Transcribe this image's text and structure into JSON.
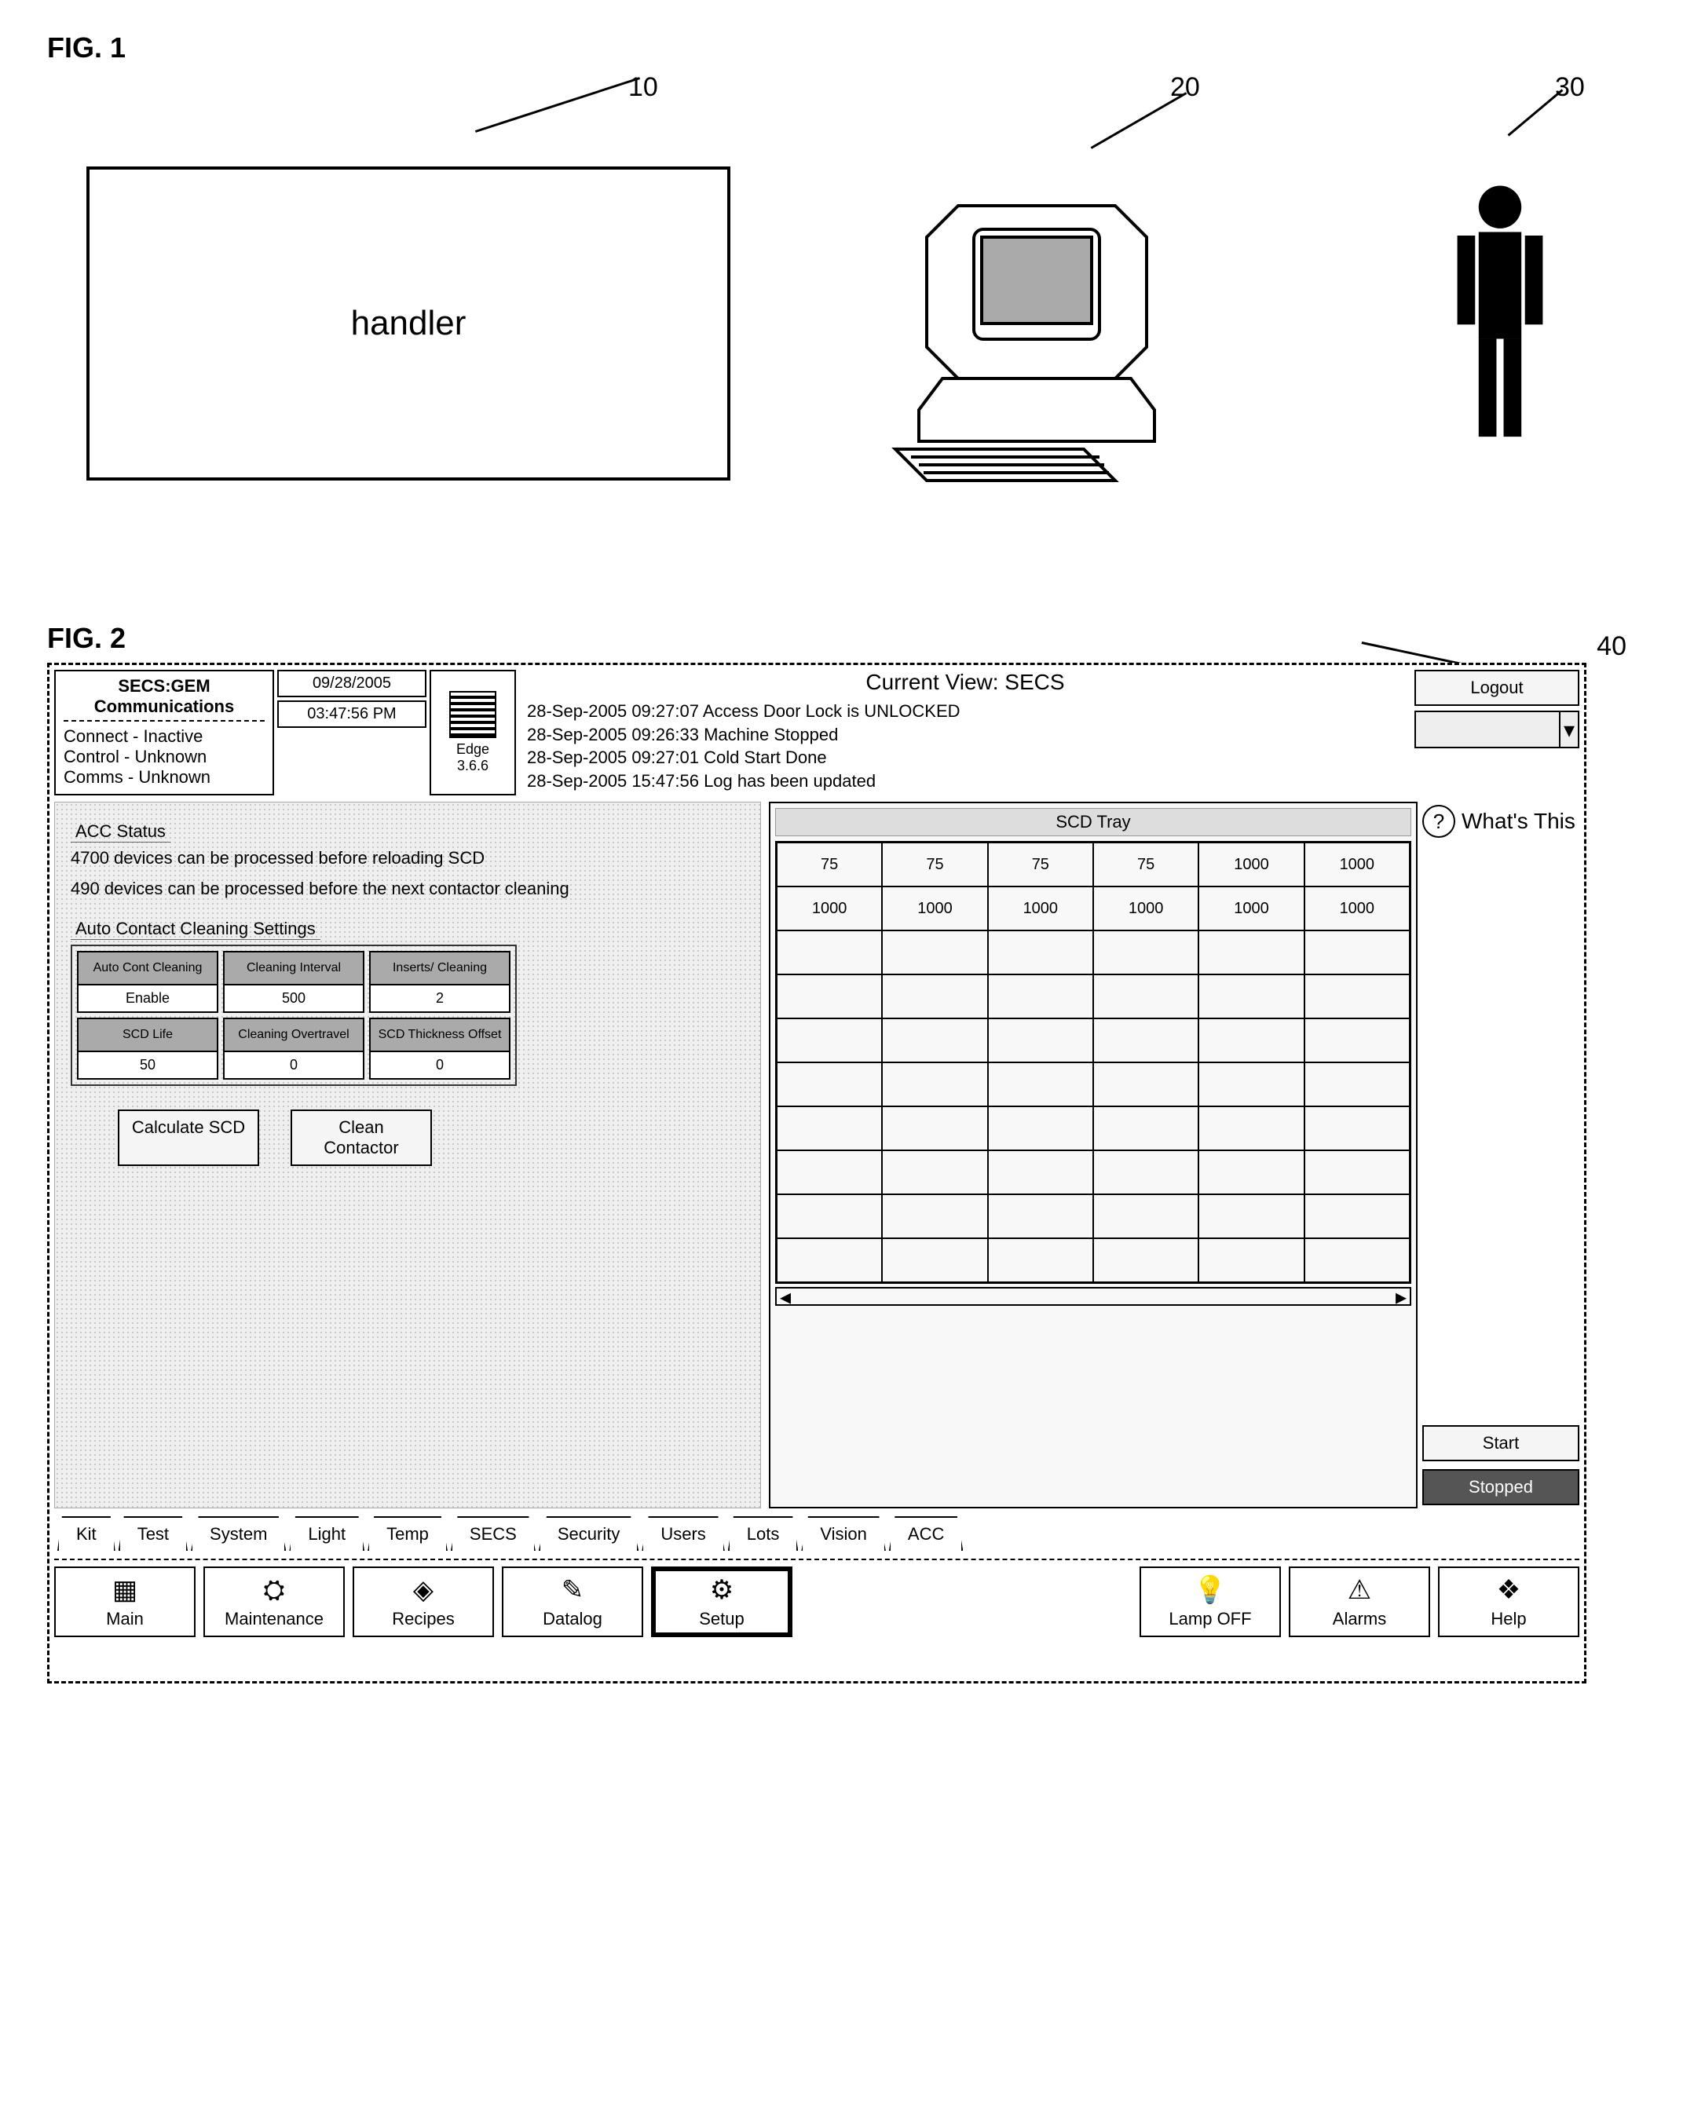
{
  "fig1": {
    "label": "FIG. 1",
    "handler_label": "handler",
    "callouts": {
      "handler": "10",
      "computer": "20",
      "person": "30"
    }
  },
  "fig2": {
    "label": "FIG. 2",
    "callout": "40",
    "header": {
      "secs_title": "SECS:GEM Communications",
      "connect": "Connect - Inactive",
      "control": "Control - Unknown",
      "comms": "Comms - Unknown",
      "date": "09/28/2005",
      "time": "03:47:56 PM",
      "edge_label": "Edge",
      "edge_ver": "3.6.6",
      "view_title": "Current View: SECS",
      "logs": [
        "28-Sep-2005 09:27:07  Access Door Lock is UNLOCKED",
        "28-Sep-2005 09:26:33  Machine Stopped",
        "28-Sep-2005 09:27:01  Cold Start Done",
        "28-Sep-2005 15:47:56  Log has been updated"
      ],
      "logout": "Logout",
      "whats_this": "What's This"
    },
    "acc_status": {
      "title": "ACC Status",
      "line1": "4700 devices can be processed before reloading SCD",
      "line2": "490 devices can be processed before the next contactor cleaning"
    },
    "settings": {
      "title": "Auto Contact Cleaning Settings",
      "cells": [
        {
          "label": "Auto Cont Cleaning",
          "value": "Enable"
        },
        {
          "label": "Cleaning Interval",
          "value": "500"
        },
        {
          "label": "Inserts/ Cleaning",
          "value": "2"
        },
        {
          "label": "SCD Life",
          "value": "50"
        },
        {
          "label": "Cleaning Overtravel",
          "value": "0"
        },
        {
          "label": "SCD Thickness Offset",
          "value": "0"
        }
      ]
    },
    "actions": {
      "calc": "Calculate SCD",
      "clean": "Clean Contactor"
    },
    "tray": {
      "title": "SCD Tray",
      "rows": 10,
      "cols": 6,
      "values": {
        "0-0": "75",
        "0-1": "75",
        "0-2": "75",
        "0-3": "75",
        "0-4": "1000",
        "0-5": "1000",
        "1-0": "1000",
        "1-1": "1000",
        "1-2": "1000",
        "1-3": "1000",
        "1-4": "1000",
        "1-5": "1000"
      }
    },
    "side": {
      "start": "Start",
      "stopped": "Stopped"
    },
    "tabs": [
      "Kit",
      "Test",
      "System",
      "Light",
      "Temp",
      "SECS",
      "Security",
      "Users",
      "Lots",
      "Vision",
      "ACC"
    ],
    "toolbar": [
      {
        "name": "main",
        "label": "Main",
        "icon": "▦"
      },
      {
        "name": "maintenance",
        "label": "Maintenance",
        "icon": "⛭"
      },
      {
        "name": "recipes",
        "label": "Recipes",
        "icon": "◈"
      },
      {
        "name": "datalog",
        "label": "Datalog",
        "icon": "✎"
      },
      {
        "name": "setup",
        "label": "Setup",
        "icon": "⚙",
        "active": true
      },
      {
        "name": "lamp",
        "label": "Lamp OFF",
        "icon": "💡"
      },
      {
        "name": "alarms",
        "label": "Alarms",
        "icon": "⚠"
      },
      {
        "name": "help",
        "label": "Help",
        "icon": "❖"
      }
    ]
  }
}
